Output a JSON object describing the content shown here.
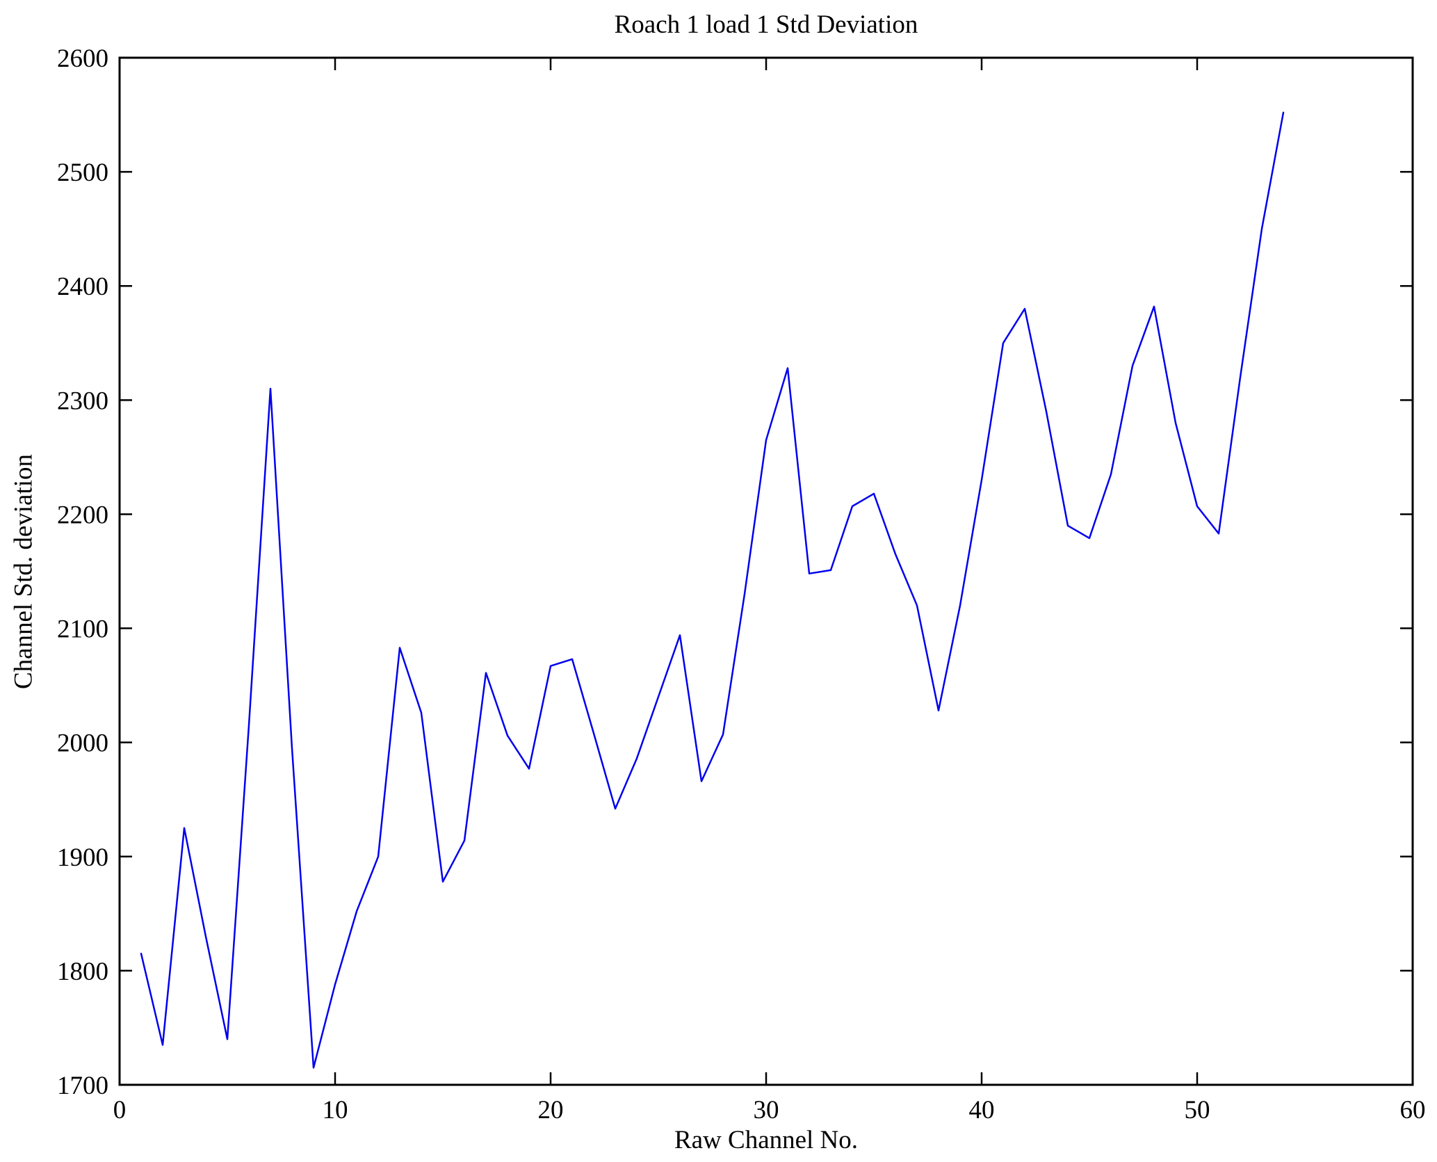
{
  "chart_data": {
    "type": "line",
    "title": "Roach 1 load 1 Std Deviation",
    "xlabel": "Raw Channel No.",
    "ylabel": "Channel Std. deviation",
    "xlim": [
      0,
      60
    ],
    "ylim": [
      1700,
      2600
    ],
    "xticks": [
      0,
      10,
      20,
      30,
      40,
      50,
      60
    ],
    "yticks": [
      1700,
      1800,
      1900,
      2000,
      2100,
      2200,
      2300,
      2400,
      2500,
      2600
    ],
    "grid": false,
    "legend_position": "none",
    "line_color": "#0000ee",
    "axis_color": "#000000",
    "series": [
      {
        "name": "Channel Std. deviation",
        "x": [
          1,
          2,
          3,
          4,
          5,
          6,
          7,
          8,
          9,
          10,
          11,
          12,
          13,
          14,
          15,
          16,
          17,
          18,
          19,
          20,
          21,
          22,
          23,
          24,
          25,
          26,
          27,
          28,
          29,
          30,
          31,
          32,
          33,
          34,
          35,
          36,
          37,
          38,
          39,
          40,
          41,
          42,
          43,
          44,
          45,
          46,
          47,
          48,
          49,
          50,
          51,
          52,
          53,
          54
        ],
        "y": [
          1815,
          1735,
          1925,
          1830,
          1740,
          2015,
          2310,
          1995,
          1715,
          1788,
          1852,
          1900,
          2083,
          2026,
          1878,
          1914,
          2061,
          2006,
          1977,
          2067,
          2073,
          2008,
          1942,
          1986,
          2040,
          2094,
          1966,
          2007,
          2130,
          2265,
          2328,
          2148,
          2151,
          2207,
          2218,
          2165,
          2120,
          2028,
          2120,
          2230,
          2350,
          2380,
          2290,
          2190,
          2179,
          2235,
          2330,
          2382,
          2280,
          2207,
          2183,
          2320,
          2450,
          2552
        ]
      }
    ]
  }
}
